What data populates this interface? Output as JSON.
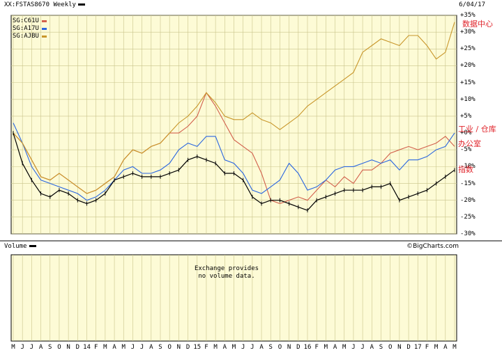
{
  "header": {
    "symbol": "XX:FSTAS8670 Weekly",
    "date": "6/04/17"
  },
  "legend": [
    {
      "label": "SG:C61U",
      "color": "#d2604c"
    },
    {
      "label": "SG:A17U",
      "color": "#2a66e0"
    },
    {
      "label": "SG:AJBU",
      "color": "#c8962a"
    }
  ],
  "annotations": {
    "data_center": "数据中心",
    "industrial_warehouse": "工业 / 仓库",
    "office": "办公室",
    "index": "指数"
  },
  "volume_panel": {
    "title": "Volume",
    "message": "Exchange provides\nno volume data.",
    "watermark": "©BigCharts.com"
  },
  "chart_data": {
    "type": "line",
    "title": "XX:FSTAS8670 Weekly",
    "ylabel": "",
    "y_unit": "percent",
    "ylim": [
      -30,
      35
    ],
    "y_ticks": [
      "+35%",
      "+30%",
      "+25%",
      "+20%",
      "+15%",
      "+10%",
      "+5%",
      "+0%",
      "-5%",
      "-10%",
      "-15%",
      "-20%",
      "-25%",
      "-30%"
    ],
    "y_tick_values": [
      35,
      30,
      25,
      20,
      15,
      10,
      5,
      0,
      -5,
      -10,
      -15,
      -20,
      -25,
      -30
    ],
    "x_ticks": [
      "M",
      "J",
      "J",
      "A",
      "S",
      "O",
      "N",
      "D",
      "14",
      "F",
      "M",
      "A",
      "M",
      "J",
      "J",
      "A",
      "S",
      "O",
      "N",
      "D",
      "15",
      "F",
      "M",
      "A",
      "M",
      "J",
      "J",
      "A",
      "S",
      "O",
      "N",
      "D",
      "16",
      "F",
      "M",
      "A",
      "M",
      "J",
      "J",
      "A",
      "S",
      "O",
      "N",
      "D",
      "17",
      "F",
      "M",
      "A",
      "M"
    ],
    "grid": true,
    "legend_position": "top-left",
    "series": [
      {
        "name": "SG:C61U",
        "color": "#d2604c",
        "values": [
          0,
          -3,
          -8,
          -13,
          -14,
          -12,
          -14,
          -16,
          -18,
          -17,
          -15,
          -13,
          -8,
          -5,
          -6,
          -4,
          -3,
          0,
          0,
          2,
          5,
          12,
          8,
          3,
          -2,
          -4,
          -6,
          -12,
          -20,
          -21,
          -20,
          -19,
          -20,
          -17,
          -14,
          -16,
          -13,
          -15,
          -11,
          -11,
          -9,
          -6,
          -5,
          -4,
          -5,
          -4,
          -3,
          -1,
          -4
        ]
      },
      {
        "name": "SG:A17U",
        "color": "#2a66e0",
        "values": [
          3,
          -3,
          -10,
          -14,
          -15,
          -16,
          -17,
          -18,
          -20,
          -19,
          -17,
          -14,
          -11,
          -10,
          -12,
          -12,
          -11,
          -9,
          -5,
          -3,
          -4,
          -1,
          -1,
          -8,
          -9,
          -12,
          -17,
          -18,
          -16,
          -14,
          -9,
          -12,
          -17,
          -16,
          -14,
          -11,
          -10,
          -10,
          -9,
          -8,
          -9,
          -8,
          -11,
          -8,
          -8,
          -7,
          -5,
          -4,
          0
        ]
      },
      {
        "name": "SG:AJBU",
        "color": "#c8962a",
        "values": [
          0,
          -3,
          -8,
          -13,
          -14,
          -12,
          -14,
          -16,
          -18,
          -17,
          -15,
          -13,
          -8,
          -5,
          -6,
          -4,
          -3,
          0,
          3,
          5,
          8,
          12,
          9,
          5,
          4,
          4,
          6,
          4,
          3,
          1,
          3,
          5,
          8,
          10,
          12,
          14,
          16,
          18,
          24,
          26,
          28,
          27,
          26,
          29,
          29,
          26,
          22,
          24,
          33
        ]
      },
      {
        "name": "",
        "color": "#000000",
        "values": [
          0,
          -9,
          -14,
          -18,
          -19,
          -17,
          -18,
          -20,
          -21,
          -20,
          -18,
          -14,
          -13,
          -12,
          -13,
          -13,
          -13,
          -12,
          -11,
          -8,
          -7,
          -8,
          -9,
          -12,
          -12,
          -14,
          -19,
          -21,
          -20,
          -20,
          -21,
          -22,
          -23,
          -20,
          -19,
          -18,
          -17,
          -17,
          -17,
          -16,
          -16,
          -15,
          -20,
          -19,
          -18,
          -17,
          -15,
          -13,
          -11
        ]
      }
    ]
  }
}
